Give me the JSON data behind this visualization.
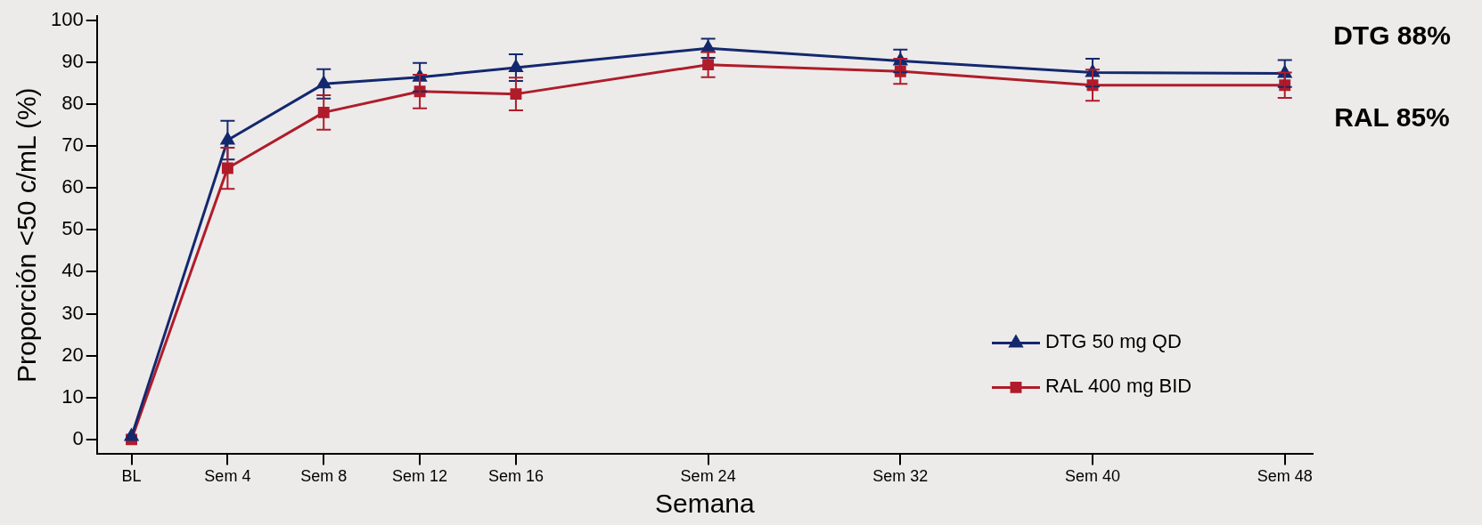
{
  "chart_data": {
    "type": "line",
    "xlabel": "Semana",
    "ylabel": "Proporción <50 c/mL (%)",
    "categories": [
      "BL",
      "Sem 4",
      "Sem 8",
      "Sem 12",
      "Sem 16",
      null,
      "Sem 24",
      null,
      "Sem 32",
      null,
      "Sem 40",
      null,
      "Sem 48"
    ],
    "ylim": [
      -3.5,
      101
    ],
    "yticks": [
      0,
      10,
      20,
      30,
      40,
      50,
      60,
      70,
      80,
      90,
      100
    ],
    "series": [
      {
        "name": "DTG 50 mg QD",
        "color": "#14286e",
        "marker": "triangle",
        "values": [
          0.7,
          71.4,
          84.8,
          86.4,
          88.7,
          null,
          93.3,
          null,
          90.3,
          null,
          87.5,
          null,
          87.3
        ],
        "errors": [
          null,
          4.6,
          3.5,
          3.4,
          3.2,
          null,
          2.3,
          null,
          2.7,
          null,
          3.3,
          null,
          3.2
        ]
      },
      {
        "name": "RAL 400 mg BID",
        "color": "#b01c2a",
        "marker": "square",
        "values": [
          0,
          64.7,
          78,
          83,
          82.4,
          null,
          89.4,
          null,
          87.8,
          null,
          84.5,
          null,
          84.5
        ],
        "errors": [
          null,
          4.9,
          4.1,
          4,
          3.9,
          null,
          3,
          null,
          3,
          null,
          3.7,
          null,
          3
        ]
      }
    ],
    "annotations": [
      "DTG 88%",
      "RAL 85%"
    ],
    "grid": false,
    "legend": "bottom right",
    "line_style": "solid"
  }
}
